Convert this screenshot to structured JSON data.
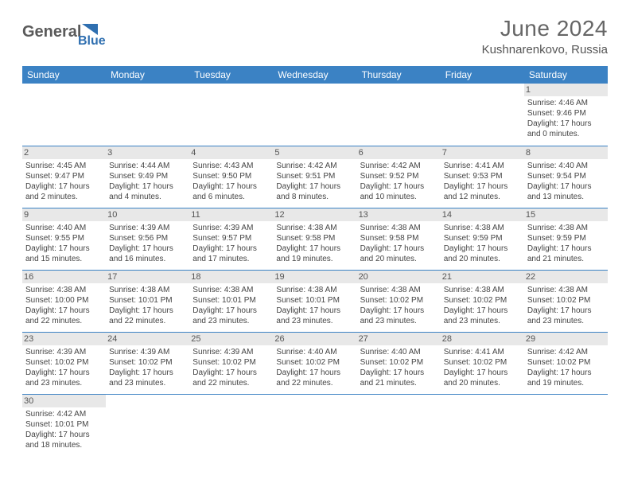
{
  "logo": {
    "word1": "General",
    "word2": "Blue",
    "color1": "#5a5a5a",
    "color2": "#2f6fb0"
  },
  "title": "June 2024",
  "location": "Kushnarenkovo, Russia",
  "header_bg": "#3b82c4",
  "days": [
    "Sunday",
    "Monday",
    "Tuesday",
    "Wednesday",
    "Thursday",
    "Friday",
    "Saturday"
  ],
  "weeks": [
    [
      null,
      null,
      null,
      null,
      null,
      null,
      {
        "n": "1",
        "sr": "4:46 AM",
        "ss": "9:46 PM",
        "dl": "17 hours and 0 minutes."
      }
    ],
    [
      {
        "n": "2",
        "sr": "4:45 AM",
        "ss": "9:47 PM",
        "dl": "17 hours and 2 minutes."
      },
      {
        "n": "3",
        "sr": "4:44 AM",
        "ss": "9:49 PM",
        "dl": "17 hours and 4 minutes."
      },
      {
        "n": "4",
        "sr": "4:43 AM",
        "ss": "9:50 PM",
        "dl": "17 hours and 6 minutes."
      },
      {
        "n": "5",
        "sr": "4:42 AM",
        "ss": "9:51 PM",
        "dl": "17 hours and 8 minutes."
      },
      {
        "n": "6",
        "sr": "4:42 AM",
        "ss": "9:52 PM",
        "dl": "17 hours and 10 minutes."
      },
      {
        "n": "7",
        "sr": "4:41 AM",
        "ss": "9:53 PM",
        "dl": "17 hours and 12 minutes."
      },
      {
        "n": "8",
        "sr": "4:40 AM",
        "ss": "9:54 PM",
        "dl": "17 hours and 13 minutes."
      }
    ],
    [
      {
        "n": "9",
        "sr": "4:40 AM",
        "ss": "9:55 PM",
        "dl": "17 hours and 15 minutes."
      },
      {
        "n": "10",
        "sr": "4:39 AM",
        "ss": "9:56 PM",
        "dl": "17 hours and 16 minutes."
      },
      {
        "n": "11",
        "sr": "4:39 AM",
        "ss": "9:57 PM",
        "dl": "17 hours and 17 minutes."
      },
      {
        "n": "12",
        "sr": "4:38 AM",
        "ss": "9:58 PM",
        "dl": "17 hours and 19 minutes."
      },
      {
        "n": "13",
        "sr": "4:38 AM",
        "ss": "9:58 PM",
        "dl": "17 hours and 20 minutes."
      },
      {
        "n": "14",
        "sr": "4:38 AM",
        "ss": "9:59 PM",
        "dl": "17 hours and 20 minutes."
      },
      {
        "n": "15",
        "sr": "4:38 AM",
        "ss": "9:59 PM",
        "dl": "17 hours and 21 minutes."
      }
    ],
    [
      {
        "n": "16",
        "sr": "4:38 AM",
        "ss": "10:00 PM",
        "dl": "17 hours and 22 minutes."
      },
      {
        "n": "17",
        "sr": "4:38 AM",
        "ss": "10:01 PM",
        "dl": "17 hours and 22 minutes."
      },
      {
        "n": "18",
        "sr": "4:38 AM",
        "ss": "10:01 PM",
        "dl": "17 hours and 23 minutes."
      },
      {
        "n": "19",
        "sr": "4:38 AM",
        "ss": "10:01 PM",
        "dl": "17 hours and 23 minutes."
      },
      {
        "n": "20",
        "sr": "4:38 AM",
        "ss": "10:02 PM",
        "dl": "17 hours and 23 minutes."
      },
      {
        "n": "21",
        "sr": "4:38 AM",
        "ss": "10:02 PM",
        "dl": "17 hours and 23 minutes."
      },
      {
        "n": "22",
        "sr": "4:38 AM",
        "ss": "10:02 PM",
        "dl": "17 hours and 23 minutes."
      }
    ],
    [
      {
        "n": "23",
        "sr": "4:39 AM",
        "ss": "10:02 PM",
        "dl": "17 hours and 23 minutes."
      },
      {
        "n": "24",
        "sr": "4:39 AM",
        "ss": "10:02 PM",
        "dl": "17 hours and 23 minutes."
      },
      {
        "n": "25",
        "sr": "4:39 AM",
        "ss": "10:02 PM",
        "dl": "17 hours and 22 minutes."
      },
      {
        "n": "26",
        "sr": "4:40 AM",
        "ss": "10:02 PM",
        "dl": "17 hours and 22 minutes."
      },
      {
        "n": "27",
        "sr": "4:40 AM",
        "ss": "10:02 PM",
        "dl": "17 hours and 21 minutes."
      },
      {
        "n": "28",
        "sr": "4:41 AM",
        "ss": "10:02 PM",
        "dl": "17 hours and 20 minutes."
      },
      {
        "n": "29",
        "sr": "4:42 AM",
        "ss": "10:02 PM",
        "dl": "17 hours and 19 minutes."
      }
    ],
    [
      {
        "n": "30",
        "sr": "4:42 AM",
        "ss": "10:01 PM",
        "dl": "17 hours and 18 minutes."
      },
      null,
      null,
      null,
      null,
      null,
      null
    ]
  ],
  "labels": {
    "sunrise": "Sunrise:",
    "sunset": "Sunset:",
    "daylight": "Daylight:"
  }
}
